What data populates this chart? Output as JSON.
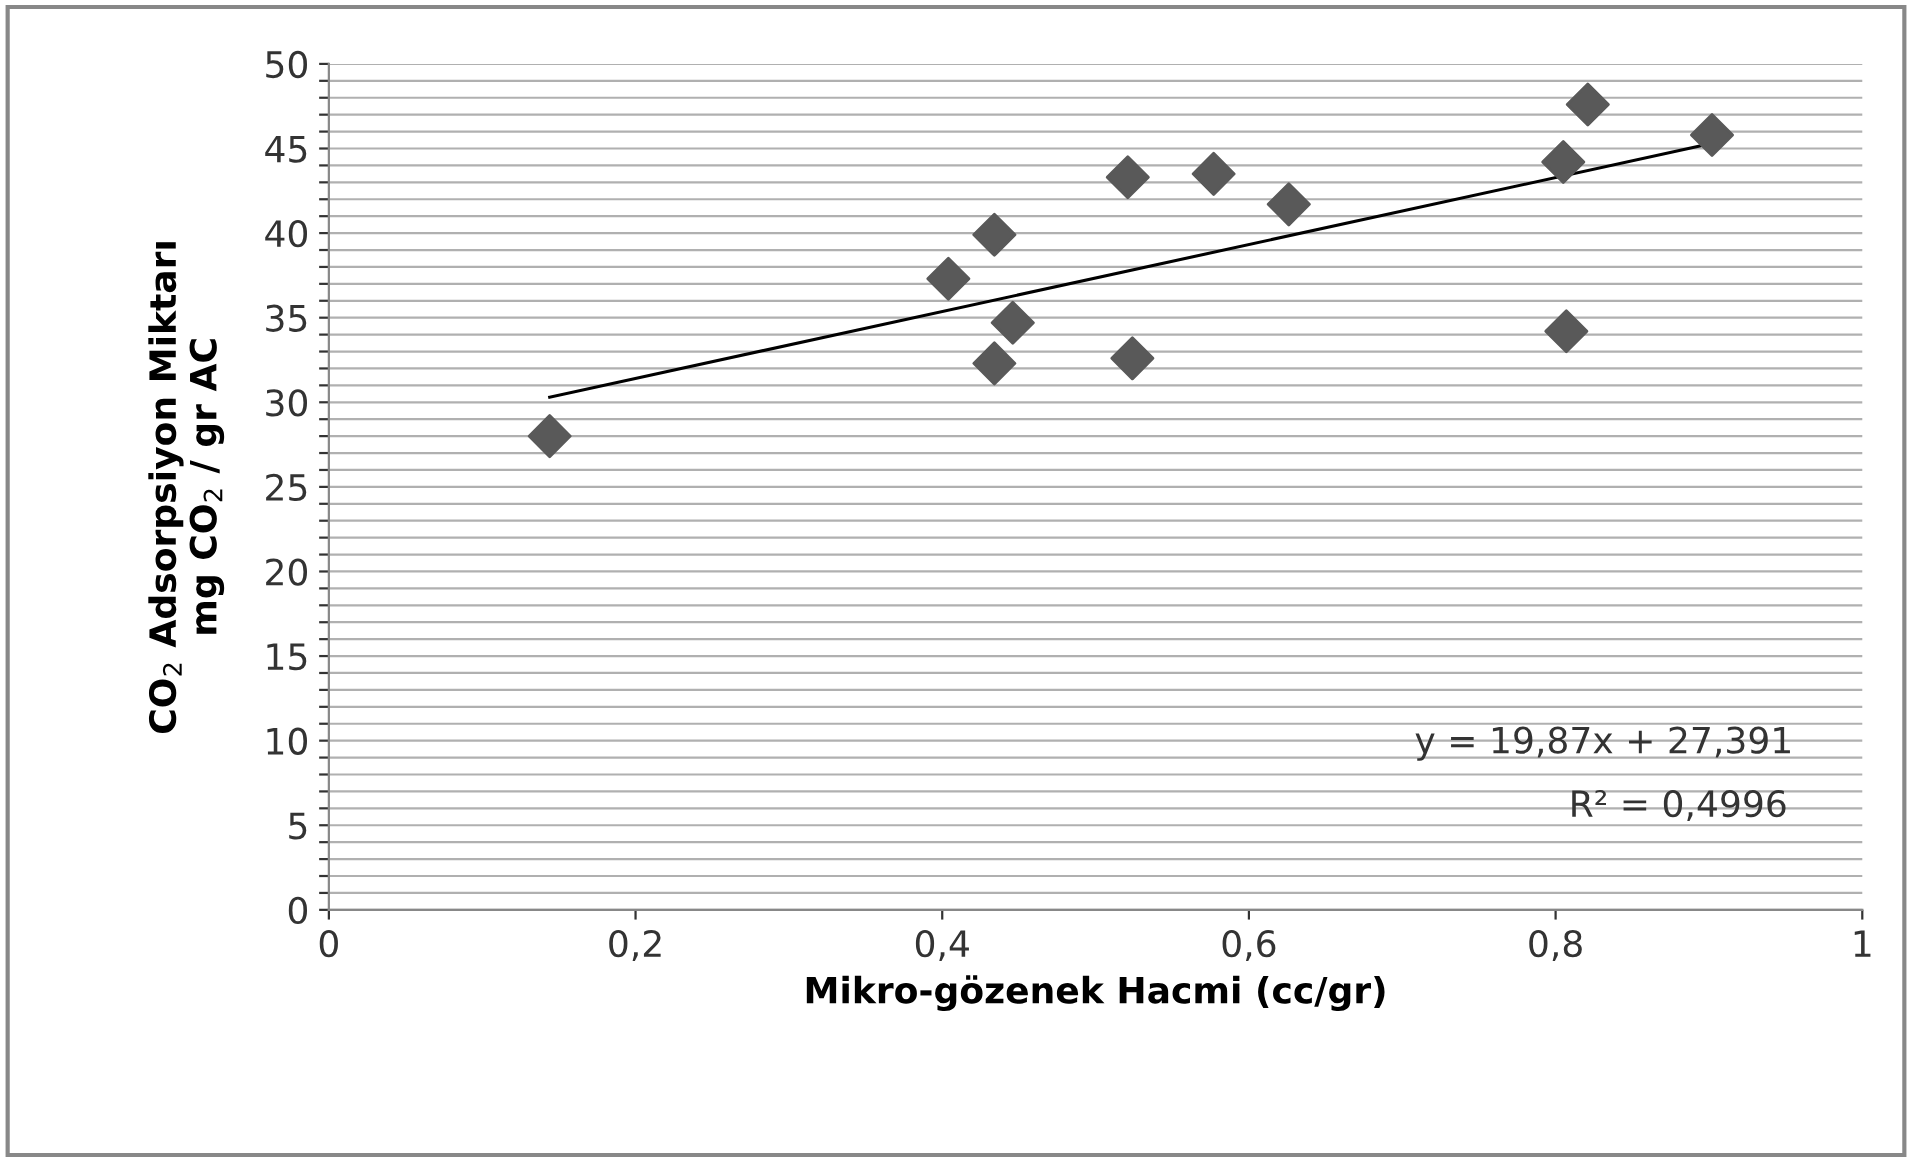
{
  "chart_data": {
    "type": "scatter",
    "xlabel": "Mikro-gözenek Hacmi (cc/gr)",
    "ylabel": "CO$_{2}$ Adsorpsiyon Miktarı\nmg CO$_{2}$ / gr AC",
    "series": [
      {
        "color": "#595959",
        "marker": "diamond",
        "x": [
          0.144,
          0.404,
          0.434,
          0.446,
          0.434,
          0.521,
          0.524,
          0.577,
          0.626,
          0.805,
          0.821,
          0.807,
          0.902
        ],
        "values": [
          28.0,
          37.3,
          39.9,
          34.7,
          32.3,
          43.3,
          32.6,
          43.5,
          41.7,
          44.2,
          47.6,
          34.2,
          45.8
        ]
      },
      {
        "type": "line",
        "color": "#000000",
        "marker": "none",
        "line_style": "solid",
        "x": [
          0.144,
          0.902
        ],
        "values": [
          30.3,
          45.3
        ]
      }
    ],
    "annotations": [
      "y = 19,87x + 27,391",
      "R² = 0,4996"
    ],
    "xlim": [
      0,
      1
    ],
    "ylim": [
      0,
      50
    ],
    "xticks": [
      0,
      {
        "value": 0.2,
        "label": "0,2"
      },
      {
        "value": 0.4,
        "label": "0,4"
      },
      {
        "value": 0.6,
        "label": "0,6"
      },
      {
        "value": 0.8,
        "label": "0,8"
      },
      1
    ],
    "yticks": [
      0,
      {
        "value": 1,
        "label": null
      },
      {
        "value": 2,
        "label": null
      },
      {
        "value": 3,
        "label": null
      },
      {
        "value": 4,
        "label": null
      },
      5,
      {
        "value": 6,
        "label": null
      },
      {
        "value": 7,
        "label": null
      },
      {
        "value": 8,
        "label": null
      },
      {
        "value": 9,
        "label": null
      },
      10,
      {
        "value": 11,
        "label": null
      },
      {
        "value": 12,
        "label": null
      },
      {
        "value": 13,
        "label": null
      },
      {
        "value": 14,
        "label": null
      },
      15,
      {
        "value": 16,
        "label": null
      },
      {
        "value": 17,
        "label": null
      },
      {
        "value": 18,
        "label": null
      },
      {
        "value": 19,
        "label": null
      },
      20,
      {
        "value": 21,
        "label": null
      },
      {
        "value": 22,
        "label": null
      },
      {
        "value": 23,
        "label": null
      },
      {
        "value": 24,
        "label": null
      },
      25,
      {
        "value": 26,
        "label": null
      },
      {
        "value": 27,
        "label": null
      },
      {
        "value": 28,
        "label": null
      },
      {
        "value": 29,
        "label": null
      },
      30,
      {
        "value": 31,
        "label": null
      },
      {
        "value": 32,
        "label": null
      },
      {
        "value": 33,
        "label": null
      },
      {
        "value": 34,
        "label": null
      },
      35,
      {
        "value": 36,
        "label": null
      },
      {
        "value": 37,
        "label": null
      },
      {
        "value": 38,
        "label": null
      },
      {
        "value": 39,
        "label": null
      },
      40,
      {
        "value": 41,
        "label": null
      },
      {
        "value": 42,
        "label": null
      },
      {
        "value": 43,
        "label": null
      },
      {
        "value": 44,
        "label": null
      },
      45,
      {
        "value": 46,
        "label": null
      },
      {
        "value": 47,
        "label": null
      },
      {
        "value": 48,
        "label": null
      },
      {
        "value": 49,
        "label": null
      },
      50
    ],
    "grid": "y"
  }
}
